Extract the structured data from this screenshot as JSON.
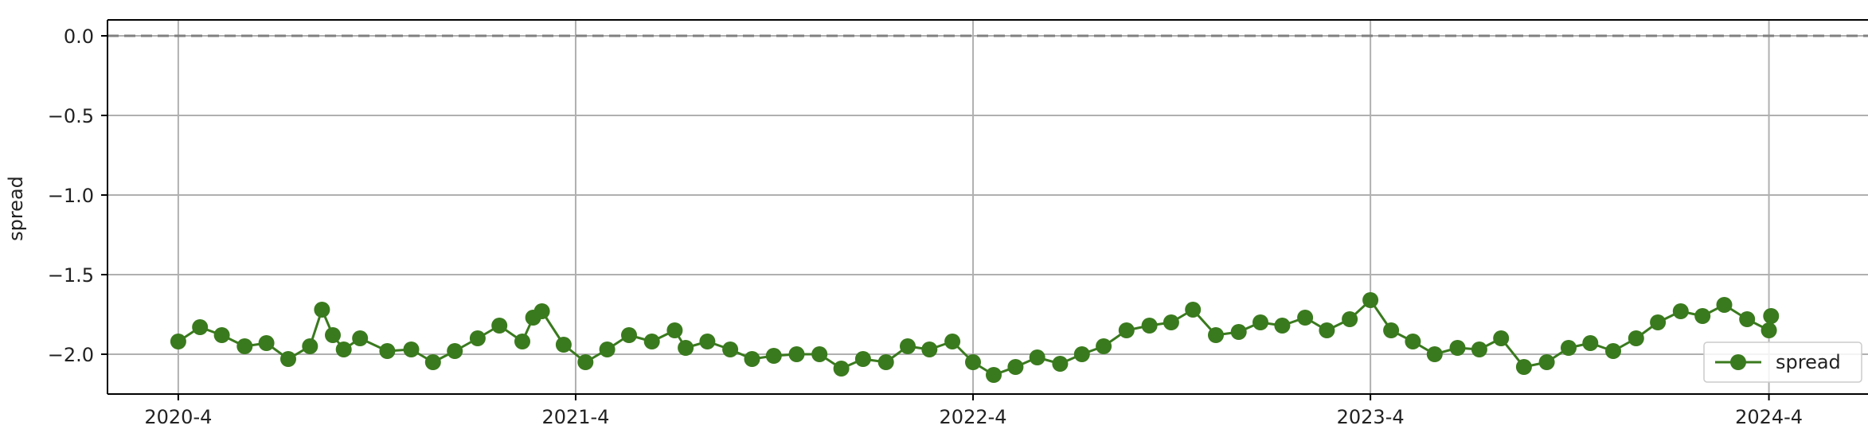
{
  "chart_data": {
    "type": "line",
    "title": "",
    "xlabel": "",
    "ylabel": "spread",
    "x_tick_labels": [
      "2020-4",
      "2021-4",
      "2022-4",
      "2023-4",
      "2024-4"
    ],
    "x_ticks": [
      "2020-04-01",
      "2021-04-01",
      "2022-04-01",
      "2023-04-01",
      "2024-04-01"
    ],
    "xlim": [
      "2020-01-27",
      "2024-07-01"
    ],
    "y_ticks": [
      0.0,
      -0.5,
      -1.0,
      -1.5,
      -2.0
    ],
    "y_tick_labels": [
      "0.0",
      "−0.5",
      "−1.0",
      "−1.5",
      "−2.0"
    ],
    "ylim": [
      -2.25,
      0.1
    ],
    "grid": true,
    "reference_line": {
      "y": 0.0,
      "style": "dashed",
      "color": "#808080"
    },
    "legend": {
      "location": "lower-right",
      "entries": [
        "spread"
      ]
    },
    "colors": {
      "series": "#3a7a1e",
      "grid": "#b0b0b0",
      "frame": "#000000"
    },
    "series": [
      {
        "name": "spread",
        "marker": "circle",
        "points": [
          [
            "2020-04-01",
            -1.92
          ],
          [
            "2020-04-21",
            -1.83
          ],
          [
            "2020-05-11",
            -1.88
          ],
          [
            "2020-06-01",
            -1.95
          ],
          [
            "2020-06-21",
            -1.93
          ],
          [
            "2020-07-11",
            -2.03
          ],
          [
            "2020-07-31",
            -1.95
          ],
          [
            "2020-08-11",
            -1.72
          ],
          [
            "2020-08-21",
            -1.88
          ],
          [
            "2020-08-31",
            -1.97
          ],
          [
            "2020-09-15",
            -1.9
          ],
          [
            "2020-10-10",
            -1.98
          ],
          [
            "2020-11-01",
            -1.97
          ],
          [
            "2020-11-21",
            -2.05
          ],
          [
            "2020-12-11",
            -1.98
          ],
          [
            "2021-01-01",
            -1.9
          ],
          [
            "2021-01-21",
            -1.82
          ],
          [
            "2021-02-11",
            -1.92
          ],
          [
            "2021-02-21",
            -1.77
          ],
          [
            "2021-03-01",
            -1.73
          ],
          [
            "2021-03-21",
            -1.94
          ],
          [
            "2021-04-10",
            -2.05
          ],
          [
            "2021-04-30",
            -1.97
          ],
          [
            "2021-05-20",
            -1.88
          ],
          [
            "2021-06-10",
            -1.92
          ],
          [
            "2021-07-01",
            -1.85
          ],
          [
            "2021-07-11",
            -1.96
          ],
          [
            "2021-07-31",
            -1.92
          ],
          [
            "2021-08-21",
            -1.97
          ],
          [
            "2021-09-10",
            -2.03
          ],
          [
            "2021-09-30",
            -2.01
          ],
          [
            "2021-10-21",
            -2.0
          ],
          [
            "2021-11-11",
            -2.0
          ],
          [
            "2021-12-01",
            -2.09
          ],
          [
            "2021-12-21",
            -2.03
          ],
          [
            "2022-01-11",
            -2.05
          ],
          [
            "2022-01-31",
            -1.95
          ],
          [
            "2022-02-20",
            -1.97
          ],
          [
            "2022-03-13",
            -1.92
          ],
          [
            "2022-04-01",
            -2.05
          ],
          [
            "2022-04-20",
            -2.13
          ],
          [
            "2022-05-10",
            -2.08
          ],
          [
            "2022-05-30",
            -2.02
          ],
          [
            "2022-06-20",
            -2.06
          ],
          [
            "2022-07-10",
            -2.0
          ],
          [
            "2022-07-30",
            -1.95
          ],
          [
            "2022-08-20",
            -1.85
          ],
          [
            "2022-09-10",
            -1.82
          ],
          [
            "2022-09-30",
            -1.8
          ],
          [
            "2022-10-20",
            -1.72
          ],
          [
            "2022-11-10",
            -1.88
          ],
          [
            "2022-12-01",
            -1.86
          ],
          [
            "2022-12-21",
            -1.8
          ],
          [
            "2023-01-10",
            -1.82
          ],
          [
            "2023-01-31",
            -1.77
          ],
          [
            "2023-02-20",
            -1.85
          ],
          [
            "2023-03-13",
            -1.78
          ],
          [
            "2023-04-01",
            -1.66
          ],
          [
            "2023-04-20",
            -1.85
          ],
          [
            "2023-05-10",
            -1.92
          ],
          [
            "2023-05-30",
            -2.0
          ],
          [
            "2023-06-20",
            -1.96
          ],
          [
            "2023-07-10",
            -1.97
          ],
          [
            "2023-07-30",
            -1.9
          ],
          [
            "2023-08-20",
            -2.08
          ],
          [
            "2023-09-10",
            -2.05
          ],
          [
            "2023-09-30",
            -1.96
          ],
          [
            "2023-10-20",
            -1.93
          ],
          [
            "2023-11-10",
            -1.98
          ],
          [
            "2023-12-01",
            -1.9
          ],
          [
            "2023-12-21",
            -1.8
          ],
          [
            "2024-01-11",
            -1.73
          ],
          [
            "2024-01-31",
            -1.76
          ],
          [
            "2024-02-20",
            -1.69
          ],
          [
            "2024-03-12",
            -1.78
          ],
          [
            "2024-04-01",
            -1.85
          ],
          [
            "2024-04-03",
            -1.76
          ]
        ]
      }
    ]
  }
}
